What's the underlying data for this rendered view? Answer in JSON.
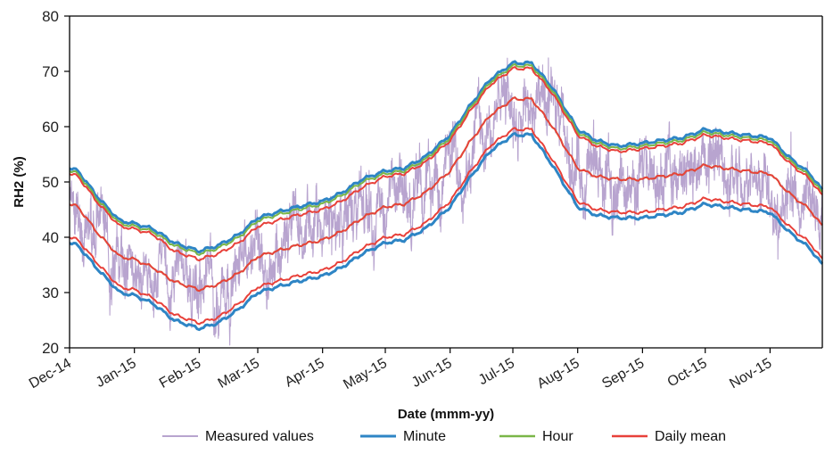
{
  "chart_data": {
    "type": "line",
    "title": "",
    "xlabel": "Date (mmm-yy)",
    "ylabel": "RH2 (%)",
    "ylim": [
      20,
      80
    ],
    "yticks": [
      20,
      30,
      40,
      50,
      60,
      70,
      80
    ],
    "xlim": [
      "2014-12-01",
      "2015-11-26"
    ],
    "xtick_labels": [
      "Dec-14",
      "Jan-15",
      "Feb-15",
      "Mar-15",
      "Apr-15",
      "May-15",
      "Jun-15",
      "Jul-15",
      "Aug-15",
      "Sep-15",
      "Oct-15",
      "Nov-15"
    ],
    "xtick_dates": [
      "2014-12-01",
      "2015-01-01",
      "2015-02-01",
      "2015-03-01",
      "2015-04-01",
      "2015-05-01",
      "2015-06-01",
      "2015-07-01",
      "2015-08-01",
      "2015-09-01",
      "2015-10-01",
      "2015-11-01"
    ],
    "grid": false,
    "legend_position": "bottom",
    "x": [
      "2014-12-01",
      "2014-12-05",
      "2014-12-15",
      "2014-12-25",
      "2015-01-01",
      "2015-01-10",
      "2015-01-20",
      "2015-02-01",
      "2015-02-10",
      "2015-02-20",
      "2015-03-01",
      "2015-03-10",
      "2015-03-20",
      "2015-04-01",
      "2015-04-10",
      "2015-04-20",
      "2015-05-01",
      "2015-05-10",
      "2015-05-20",
      "2015-06-01",
      "2015-06-10",
      "2015-06-20",
      "2015-07-01",
      "2015-07-10",
      "2015-07-20",
      "2015-08-01",
      "2015-08-10",
      "2015-08-20",
      "2015-09-01",
      "2015-09-10",
      "2015-09-20",
      "2015-10-01",
      "2015-10-10",
      "2015-10-20",
      "2015-11-01",
      "2015-11-10",
      "2015-11-20",
      "2015-11-26"
    ],
    "series": [
      {
        "name": "Measured values",
        "color": "#b8a4cf",
        "style": "noisy",
        "values": [
          48,
          44,
          40,
          36,
          35,
          33,
          32,
          31,
          32,
          35,
          38,
          39,
          40,
          41,
          43,
          45,
          46,
          46,
          48,
          52,
          57,
          62,
          65,
          65,
          60,
          53,
          51,
          50,
          50,
          51,
          51.5,
          53,
          52.5,
          52,
          51.5,
          48,
          45,
          42
        ]
      },
      {
        "name": "Minute",
        "color": "#2e85c5",
        "upper": [
          52.5,
          52,
          47,
          43,
          42.5,
          41.5,
          39,
          37.5,
          38.5,
          40.5,
          43.5,
          44.5,
          45.5,
          46.5,
          48,
          50.5,
          52,
          52.5,
          54.5,
          58.5,
          63.5,
          68.5,
          71.5,
          71.5,
          67,
          59.5,
          57.5,
          56.5,
          57,
          57.5,
          58,
          59.5,
          59,
          58.5,
          58,
          54.5,
          51.5,
          48.5
        ],
        "lower": [
          39,
          38.5,
          34,
          30,
          29.5,
          28,
          25,
          23.5,
          24.5,
          27,
          30,
          31,
          32,
          33,
          34.5,
          37,
          39,
          39.5,
          41.5,
          45.5,
          50.5,
          55.5,
          58.5,
          58.5,
          53,
          45.5,
          44,
          43.5,
          43.5,
          44,
          44.5,
          46,
          45.5,
          45,
          44.5,
          41,
          38,
          35
        ]
      },
      {
        "name": "Hour",
        "color": "#7ab648",
        "values": [
          46,
          45.5,
          40.5,
          36.5,
          36,
          34.5,
          32,
          30.5,
          31.5,
          33.5,
          36.5,
          37.5,
          38.5,
          39.5,
          41,
          43.5,
          45.5,
          46,
          48,
          52,
          57,
          62,
          65,
          65,
          60,
          52.5,
          51,
          50.5,
          50.5,
          51,
          51.5,
          53,
          52.5,
          52,
          51.5,
          48,
          45,
          42
        ],
        "upper": [
          52,
          51.5,
          46.5,
          42.5,
          42,
          41,
          38.5,
          37,
          38,
          40,
          43,
          44,
          45,
          46,
          47.5,
          50,
          51.5,
          52,
          54,
          58,
          63,
          68,
          71,
          71,
          66.5,
          59,
          57,
          56,
          56.5,
          57,
          57.5,
          59,
          58.5,
          58,
          57.5,
          54,
          51,
          48
        ]
      },
      {
        "name": "Daily mean",
        "color": "#e8413a",
        "values": [
          46,
          45.5,
          40.5,
          36.5,
          36,
          34.5,
          32,
          30.5,
          31.5,
          33.5,
          36.5,
          37.5,
          38.5,
          39.5,
          41,
          43.5,
          45.5,
          46,
          48,
          52,
          57,
          62,
          65,
          65,
          60,
          52.5,
          51,
          50.5,
          50.5,
          51,
          51.5,
          53,
          52.5,
          52,
          51.5,
          48,
          45,
          42
        ],
        "upper": [
          51.5,
          51,
          46,
          42,
          41.5,
          40.5,
          37.5,
          36,
          37,
          39,
          42,
          43,
          44,
          45,
          46.5,
          49,
          51,
          51.5,
          53.5,
          57.5,
          62.5,
          67.5,
          70.5,
          70.5,
          66,
          58.5,
          56.5,
          55.5,
          56,
          56.5,
          57,
          58.5,
          58,
          57.5,
          57,
          53.5,
          50.5,
          47.5
        ],
        "lower": [
          40,
          39.5,
          35,
          31,
          30.5,
          29,
          26,
          24.5,
          25.5,
          28,
          31,
          32,
          33,
          34,
          35.5,
          38,
          40,
          40.5,
          42.5,
          46.5,
          51.5,
          56.5,
          59.5,
          59.5,
          54,
          46.5,
          45,
          44.5,
          44.5,
          45,
          45.5,
          47,
          46.5,
          46,
          45.5,
          42,
          39,
          36
        ]
      }
    ]
  }
}
